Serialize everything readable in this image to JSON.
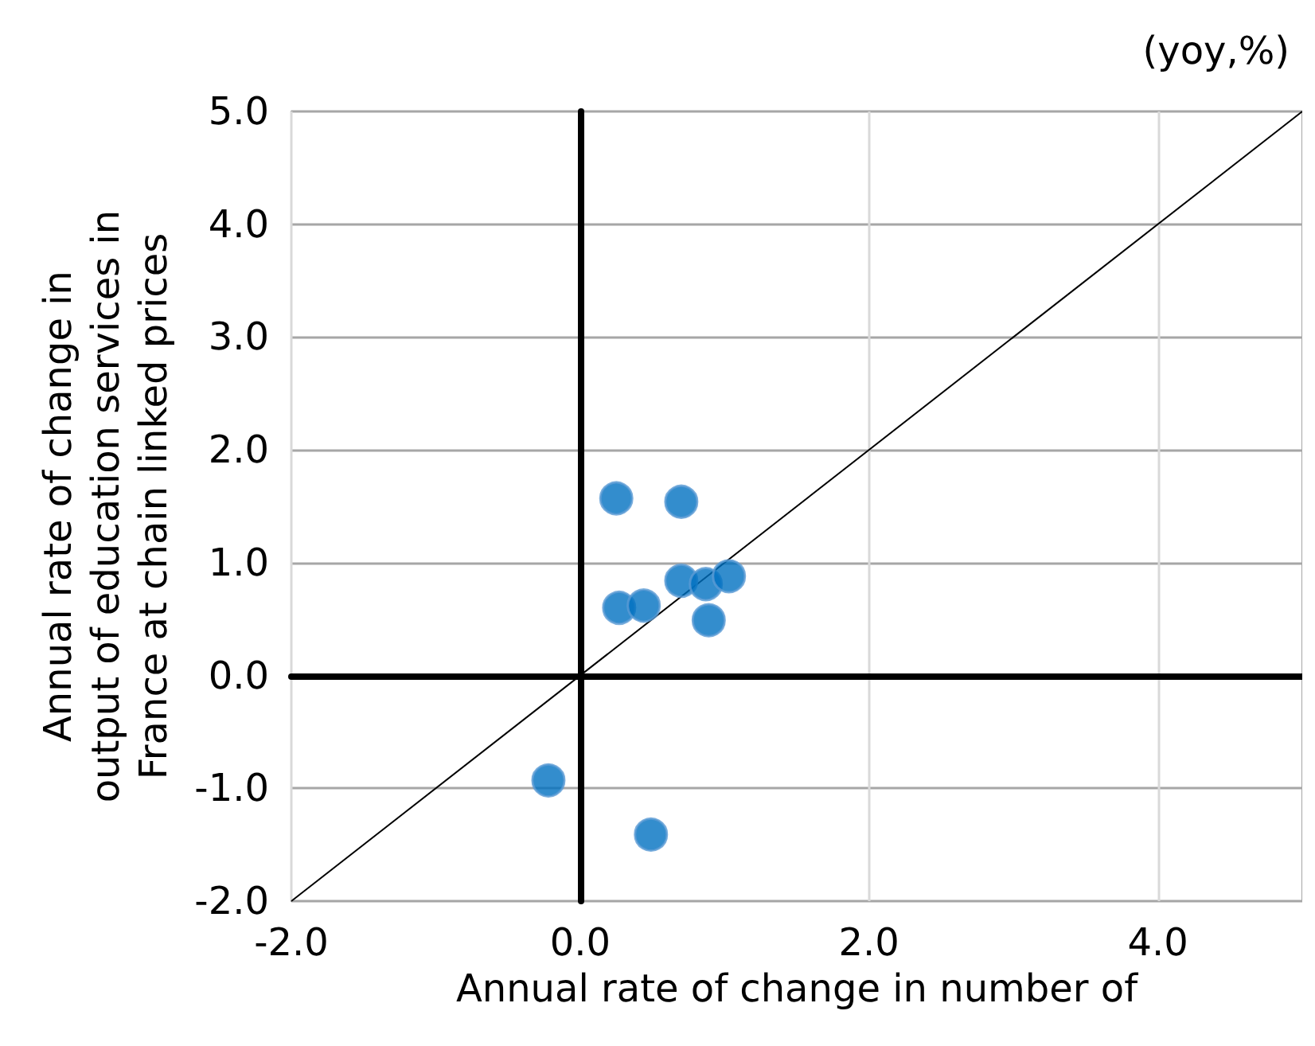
{
  "chart_data": {
    "type": "scatter",
    "xlabel": "Annual rate of change in number of",
    "ylabel": "Annual rate of change in\noutput of education services in\nFrance at chain linked prices",
    "annotations": [
      "(yoy,%)"
    ],
    "x": [
      0.25,
      0.7,
      0.27,
      0.44,
      0.7,
      0.87,
      1.03,
      0.89,
      -0.22,
      0.49
    ],
    "series": [
      {
        "color": "#0070c0",
        "values": [
          1.57,
          1.54,
          0.6,
          0.62,
          0.84,
          0.81,
          0.88,
          0.49,
          -0.93,
          -1.41
        ]
      },
      {
        "type": "line",
        "color": "#000000",
        "x": [
          -2,
          5
        ],
        "values": [
          -2,
          5
        ],
        "marker": "none"
      }
    ],
    "xlim": [
      -2,
      5
    ],
    "ylim": [
      -2,
      5
    ],
    "xticks": [
      {
        "value": -2,
        "label": "-2.0"
      },
      {
        "value": 0,
        "label": "0.0"
      },
      {
        "value": 2,
        "label": "2.0"
      },
      {
        "value": 4,
        "label": "4.0"
      }
    ],
    "yticks": [
      {
        "value": -2,
        "label": "-2.0"
      },
      {
        "value": -1,
        "label": "-1.0"
      },
      {
        "value": 0,
        "label": "0.0"
      },
      {
        "value": 1,
        "label": "1.0"
      },
      {
        "value": 2,
        "label": "2.0"
      },
      {
        "value": 3,
        "label": "3.0"
      },
      {
        "value": 4,
        "label": "4.0"
      },
      {
        "value": 5,
        "label": "5.0"
      }
    ],
    "grid": true,
    "marker": "circle"
  }
}
